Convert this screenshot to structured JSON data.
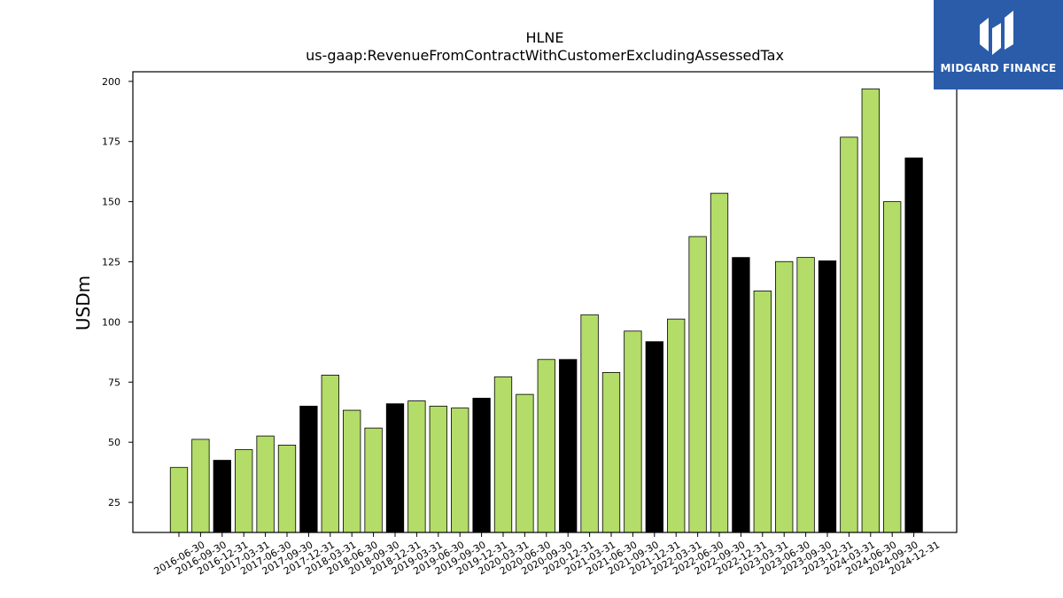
{
  "brand": {
    "name": "MIDGARD FINANCE",
    "logo_icon": "midgard-logo-icon",
    "background": "#2a5caa"
  },
  "chart_data": {
    "type": "bar",
    "title": "HLNE",
    "subtitle": "us-gaap:RevenueFromContractWithCustomerExcludingAssessedTax",
    "xlabel": "",
    "ylabel": "USDm",
    "ylim": [
      12.5,
      204
    ],
    "yticks": [
      25,
      50,
      75,
      100,
      125,
      150,
      175,
      200
    ],
    "grid": false,
    "colors": {
      "quarter": "#b3dc68",
      "year_end": "#000000",
      "edge": "#000000"
    },
    "categories": [
      "2016-06-30",
      "2016-09-30",
      "2016-12-31",
      "2017-03-31",
      "2017-06-30",
      "2017-09-30",
      "2017-12-31",
      "2018-03-31",
      "2018-06-30",
      "2018-09-30",
      "2018-12-31",
      "2019-03-31",
      "2019-06-30",
      "2019-09-30",
      "2019-12-31",
      "2020-03-31",
      "2020-06-30",
      "2020-09-30",
      "2020-12-31",
      "2021-03-31",
      "2021-06-30",
      "2021-09-30",
      "2021-12-31",
      "2022-03-31",
      "2022-06-30",
      "2022-09-30",
      "2022-12-31",
      "2023-03-31",
      "2023-06-30",
      "2023-09-30",
      "2023-12-31",
      "2024-03-31",
      "2024-06-30",
      "2024-09-30",
      "2024-12-31"
    ],
    "values": [
      39.5,
      51.2,
      42.5,
      46.9,
      52.6,
      48.8,
      65.0,
      77.9,
      63.3,
      55.9,
      66.0,
      67.2,
      65.0,
      64.2,
      68.3,
      77.2,
      69.9,
      84.4,
      84.4,
      103.0,
      79.0,
      96.2,
      91.8,
      101.2,
      135.5,
      153.5,
      126.8,
      112.9,
      125.1,
      126.8,
      125.4,
      176.8,
      196.9,
      150.0,
      168.2
    ],
    "year_end": [
      false,
      false,
      true,
      false,
      false,
      false,
      true,
      false,
      false,
      false,
      true,
      false,
      false,
      false,
      true,
      false,
      false,
      false,
      true,
      false,
      false,
      false,
      true,
      false,
      false,
      false,
      true,
      false,
      false,
      false,
      true,
      false,
      false,
      false,
      true
    ]
  }
}
